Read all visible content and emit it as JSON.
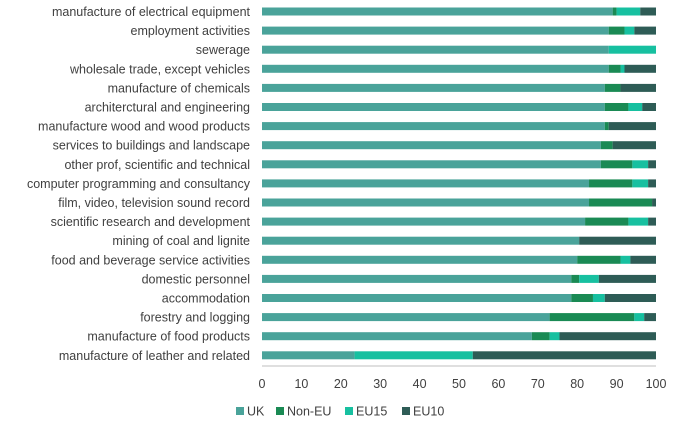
{
  "chart_data": {
    "type": "bar",
    "orientation": "horizontal",
    "stacked": true,
    "categories": [
      "manufacture of electrical equipment",
      "employment activities",
      "sewerage",
      "wholesale trade, except vehicles",
      "manufacture of chemicals",
      "architerctural and engineering",
      "manufacture wood and wood products",
      "services to buildings and landscape",
      "other prof, scientific and technical",
      "computer programming and consultancy",
      "film, video, television sound record",
      "scientific research and development",
      "mining of coal and lignite",
      "food and beverage service activities",
      "domestic personnel",
      "accommodation",
      "forestry and logging",
      "manufacture of food products",
      "manufacture of leather and related"
    ],
    "series": [
      {
        "name": "UK",
        "color": "#4aa39a",
        "values": [
          89,
          88,
          88,
          88,
          87,
          87,
          87,
          86,
          86,
          83,
          83,
          82,
          80.5,
          80,
          78.5,
          78.5,
          73,
          68.5,
          23.5
        ]
      },
      {
        "name": "Non-EU",
        "color": "#1a8a54",
        "values": [
          1,
          4,
          0,
          3,
          4,
          6,
          1,
          3,
          8,
          11,
          16,
          11,
          0,
          11,
          2,
          5.5,
          21.5,
          4.5,
          0
        ]
      },
      {
        "name": "EU15",
        "color": "#17c0a0",
        "values": [
          6,
          2.5,
          12,
          1,
          0,
          3.5,
          0,
          0,
          4,
          4,
          0,
          5,
          0,
          2.5,
          5,
          3,
          2.5,
          2.5,
          30
        ]
      },
      {
        "name": "EU10",
        "color": "#2e5c56",
        "values": [
          4,
          5.5,
          0,
          8,
          9,
          3.5,
          12,
          11,
          2,
          2,
          1,
          2,
          19.5,
          6.5,
          14.5,
          13,
          3,
          24.5,
          46.5
        ]
      }
    ],
    "xlim": [
      0,
      100
    ],
    "xticks": [
      "0",
      "10",
      "20",
      "30",
      "40",
      "50",
      "60",
      "70",
      "80",
      "90",
      "100"
    ],
    "grid": false,
    "legend_position": "bottom-left"
  }
}
